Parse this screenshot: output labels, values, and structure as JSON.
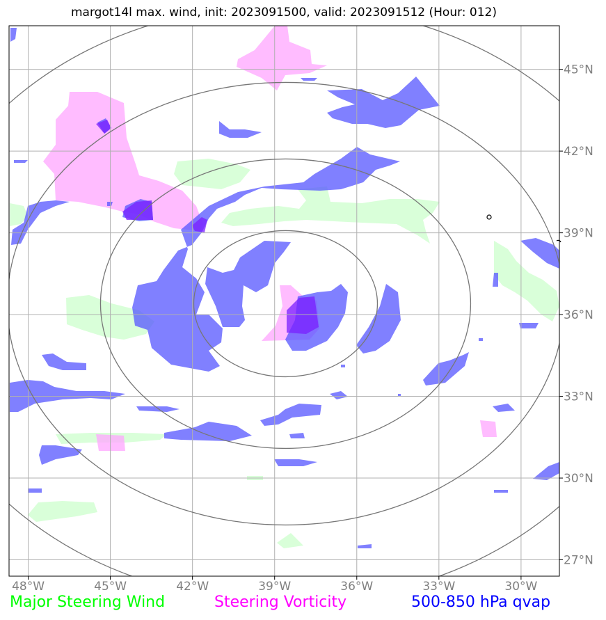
{
  "title": "margot14l max. wind, init: 2023091500, valid: 2023091512 (Hour: 012)",
  "map": {
    "lon_range": [
      -48.7,
      -28.6
    ],
    "lat_range": [
      26.4,
      46.6
    ],
    "lon_ticks": [
      {
        "value": -48,
        "label": "48°W"
      },
      {
        "value": -45,
        "label": "45°W"
      },
      {
        "value": -42,
        "label": "42°W"
      },
      {
        "value": -39,
        "label": "39°W"
      },
      {
        "value": -36,
        "label": "36°W"
      },
      {
        "value": -33,
        "label": "33°W"
      },
      {
        "value": -30,
        "label": "30°W"
      }
    ],
    "lat_ticks": [
      {
        "value": 27,
        "label": "27°N"
      },
      {
        "value": 30,
        "label": "30°N"
      },
      {
        "value": 33,
        "label": "33°N"
      },
      {
        "value": 36,
        "label": "36°N"
      },
      {
        "value": 39,
        "label": "39°N"
      },
      {
        "value": 42,
        "label": "42°N"
      },
      {
        "value": 45,
        "label": "45°N"
      }
    ],
    "grid": true,
    "storm_center": {
      "lon": -38.6,
      "lat": 36.4
    },
    "range_ring_count": 4,
    "colors": {
      "steering_wind": "#ccffcc",
      "steering_vorticity": "#ffa6ff",
      "qvap": "#5555ff",
      "ring": "#777777",
      "grid": "#b0b0b0"
    }
  },
  "legend": [
    {
      "label": "Major Steering Wind",
      "color": "#00ff00"
    },
    {
      "label": "Steering Vorticity",
      "color": "#ff00ff"
    },
    {
      "label": "500-850 hPa qvap",
      "color": "#0000ff"
    }
  ]
}
